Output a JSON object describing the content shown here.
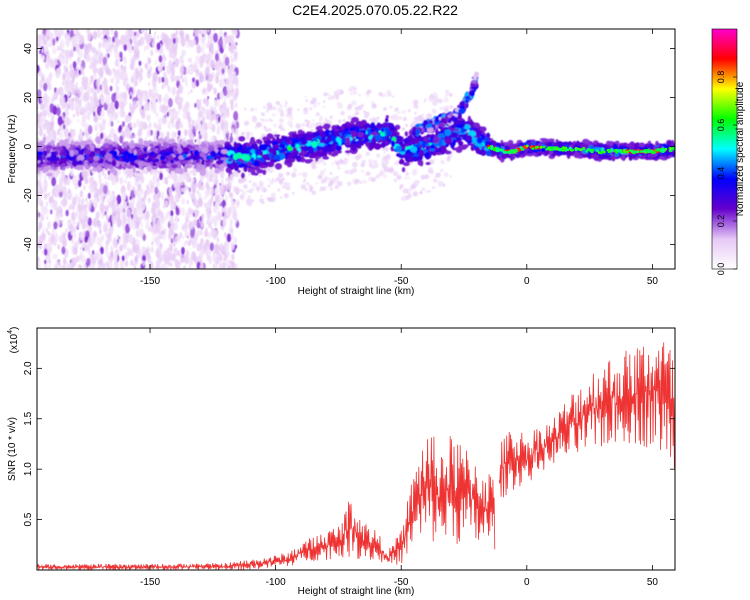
{
  "figure_title": "C2E4.2025.070.05.22.R22",
  "chart_data": [
    {
      "type": "heatmap",
      "title": "C2E4.2025.070.05.22.R22",
      "xlabel": "Height of straight line (km)",
      "ylabel": "Frequency (Hz)",
      "xlim": [
        -195,
        59
      ],
      "ylim": [
        -50,
        48
      ],
      "xticks": [
        -150,
        -100,
        -50,
        0,
        50
      ],
      "yticks": [
        -40,
        -20,
        0,
        20,
        40
      ],
      "colorbar": {
        "label": "Normalized spectral amplitude",
        "range": [
          0,
          1
        ],
        "ticks": [
          "0.0",
          "0.2",
          "0.4",
          "0.6",
          "0.8"
        ],
        "colormap": [
          "#ffffff",
          "#e6c8f5",
          "#6600cc",
          "#0000ff",
          "#00ffff",
          "#00ff00",
          "#ffff00",
          "#ff0000",
          "#ff00cc"
        ]
      },
      "ridge": {
        "x": [
          -195,
          -150,
          -125,
          -110,
          -100,
          -90,
          -80,
          -70,
          -60,
          -55,
          -50,
          -40,
          -30,
          -25,
          -20,
          -15,
          -10,
          -5,
          0,
          10,
          20,
          30,
          40,
          50,
          59
        ],
        "frequency": [
          -4,
          -4,
          -4,
          -4,
          -2,
          0,
          2,
          4,
          5,
          6,
          -2,
          0,
          4,
          7,
          3,
          0,
          -2,
          -2,
          0,
          -1,
          -1,
          -2,
          -2,
          -2,
          -1
        ]
      },
      "upper_branch": {
        "x": [
          -45,
          -40,
          -35,
          -30,
          -27,
          -25,
          -22,
          -20
        ],
        "frequency": [
          6,
          8,
          10,
          12,
          14,
          17,
          22,
          28
        ]
      }
    },
    {
      "type": "line",
      "xlabel": "Height of straight line (km)",
      "ylabel": "SNR (10 * v/v)",
      "yscale_label": "(x10",
      "yscale_exponent": "4",
      "xlim": [
        -195,
        59
      ],
      "ylim": [
        0,
        2.4
      ],
      "xticks": [
        -150,
        -100,
        -50,
        0,
        50
      ],
      "yticks": [
        0.5,
        1.0,
        1.5,
        2.0
      ],
      "ytick_labels": [
        "0.5",
        "1.0",
        "1.5",
        "2.0"
      ],
      "color": "#ee3333",
      "envelope": {
        "x": [
          -195,
          -150,
          -120,
          -112,
          -100,
          -95,
          -88,
          -80,
          -75,
          -70,
          -65,
          -60,
          -55,
          -50,
          -45,
          -40,
          -35,
          -30,
          -25,
          -20,
          -15,
          -12,
          -10,
          -5,
          0,
          5,
          10,
          20,
          30,
          40,
          50,
          55,
          59
        ],
        "min": [
          0.0,
          0.0,
          0.0,
          0.0,
          0.02,
          0.03,
          0.08,
          0.1,
          0.12,
          0.12,
          0.1,
          0.08,
          0.05,
          0.05,
          0.2,
          0.25,
          0.25,
          0.25,
          0.25,
          0.2,
          0.2,
          0.2,
          0.7,
          0.8,
          0.85,
          0.95,
          1.05,
          1.1,
          1.2,
          1.25,
          1.2,
          1.1,
          1.0
        ],
        "max": [
          0.06,
          0.06,
          0.07,
          0.1,
          0.15,
          0.18,
          0.3,
          0.4,
          0.45,
          0.75,
          0.5,
          0.4,
          0.2,
          0.4,
          1.0,
          1.45,
          1.25,
          1.35,
          1.25,
          1.15,
          1.0,
          0.9,
          1.3,
          1.45,
          1.35,
          1.45,
          1.5,
          1.85,
          2.1,
          2.2,
          2.35,
          2.35,
          2.1
        ]
      }
    }
  ]
}
